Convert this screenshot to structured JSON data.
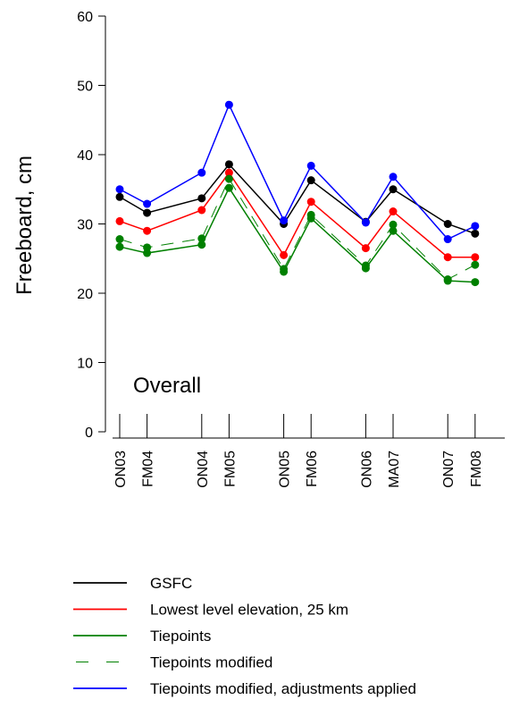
{
  "chart_data": {
    "type": "line",
    "ylabel": "Freeboard, cm",
    "annotation": "Overall",
    "ylim": [
      0,
      60
    ],
    "yticks": [
      0,
      10,
      20,
      30,
      40,
      50,
      60
    ],
    "categories": [
      "ON03",
      "FM04",
      "ON04",
      "FM05",
      "ON05",
      "FM06",
      "ON06",
      "MA07",
      "ON07",
      "FM08"
    ],
    "x_positions": [
      0,
      1,
      3,
      4,
      6,
      7,
      9,
      10,
      12,
      13
    ],
    "legend_position": "bottom",
    "series": [
      {
        "name": "GSFC",
        "color": "#000000",
        "dash": false,
        "markers": true,
        "values": [
          33.9,
          31.6,
          33.7,
          38.6,
          30.0,
          36.3,
          30.3,
          35.0,
          30.0,
          28.6
        ]
      },
      {
        "name": "Lowest level elevation, 25 km",
        "color": "#ff0000",
        "dash": false,
        "markers": true,
        "values": [
          30.4,
          29.0,
          32.0,
          37.4,
          25.5,
          33.2,
          26.5,
          31.8,
          25.2,
          25.2
        ]
      },
      {
        "name": "Tiepoints",
        "color": "#008000",
        "dash": false,
        "markers": true,
        "values": [
          26.7,
          25.8,
          27.0,
          35.2,
          23.1,
          30.8,
          23.6,
          29.0,
          21.8,
          21.6
        ]
      },
      {
        "name": "Tiepoints modified",
        "color": "#008000",
        "dash": true,
        "markers": true,
        "values": [
          27.8,
          26.6,
          27.9,
          36.5,
          23.5,
          31.3,
          24.0,
          29.9,
          22.0,
          24.1
        ]
      },
      {
        "name": "Tiepoints modified, adjustments applied",
        "color": "#0000ff",
        "dash": false,
        "markers": true,
        "values": [
          35.0,
          32.9,
          37.4,
          47.2,
          30.5,
          38.4,
          30.2,
          36.8,
          27.8,
          29.7
        ]
      }
    ]
  }
}
